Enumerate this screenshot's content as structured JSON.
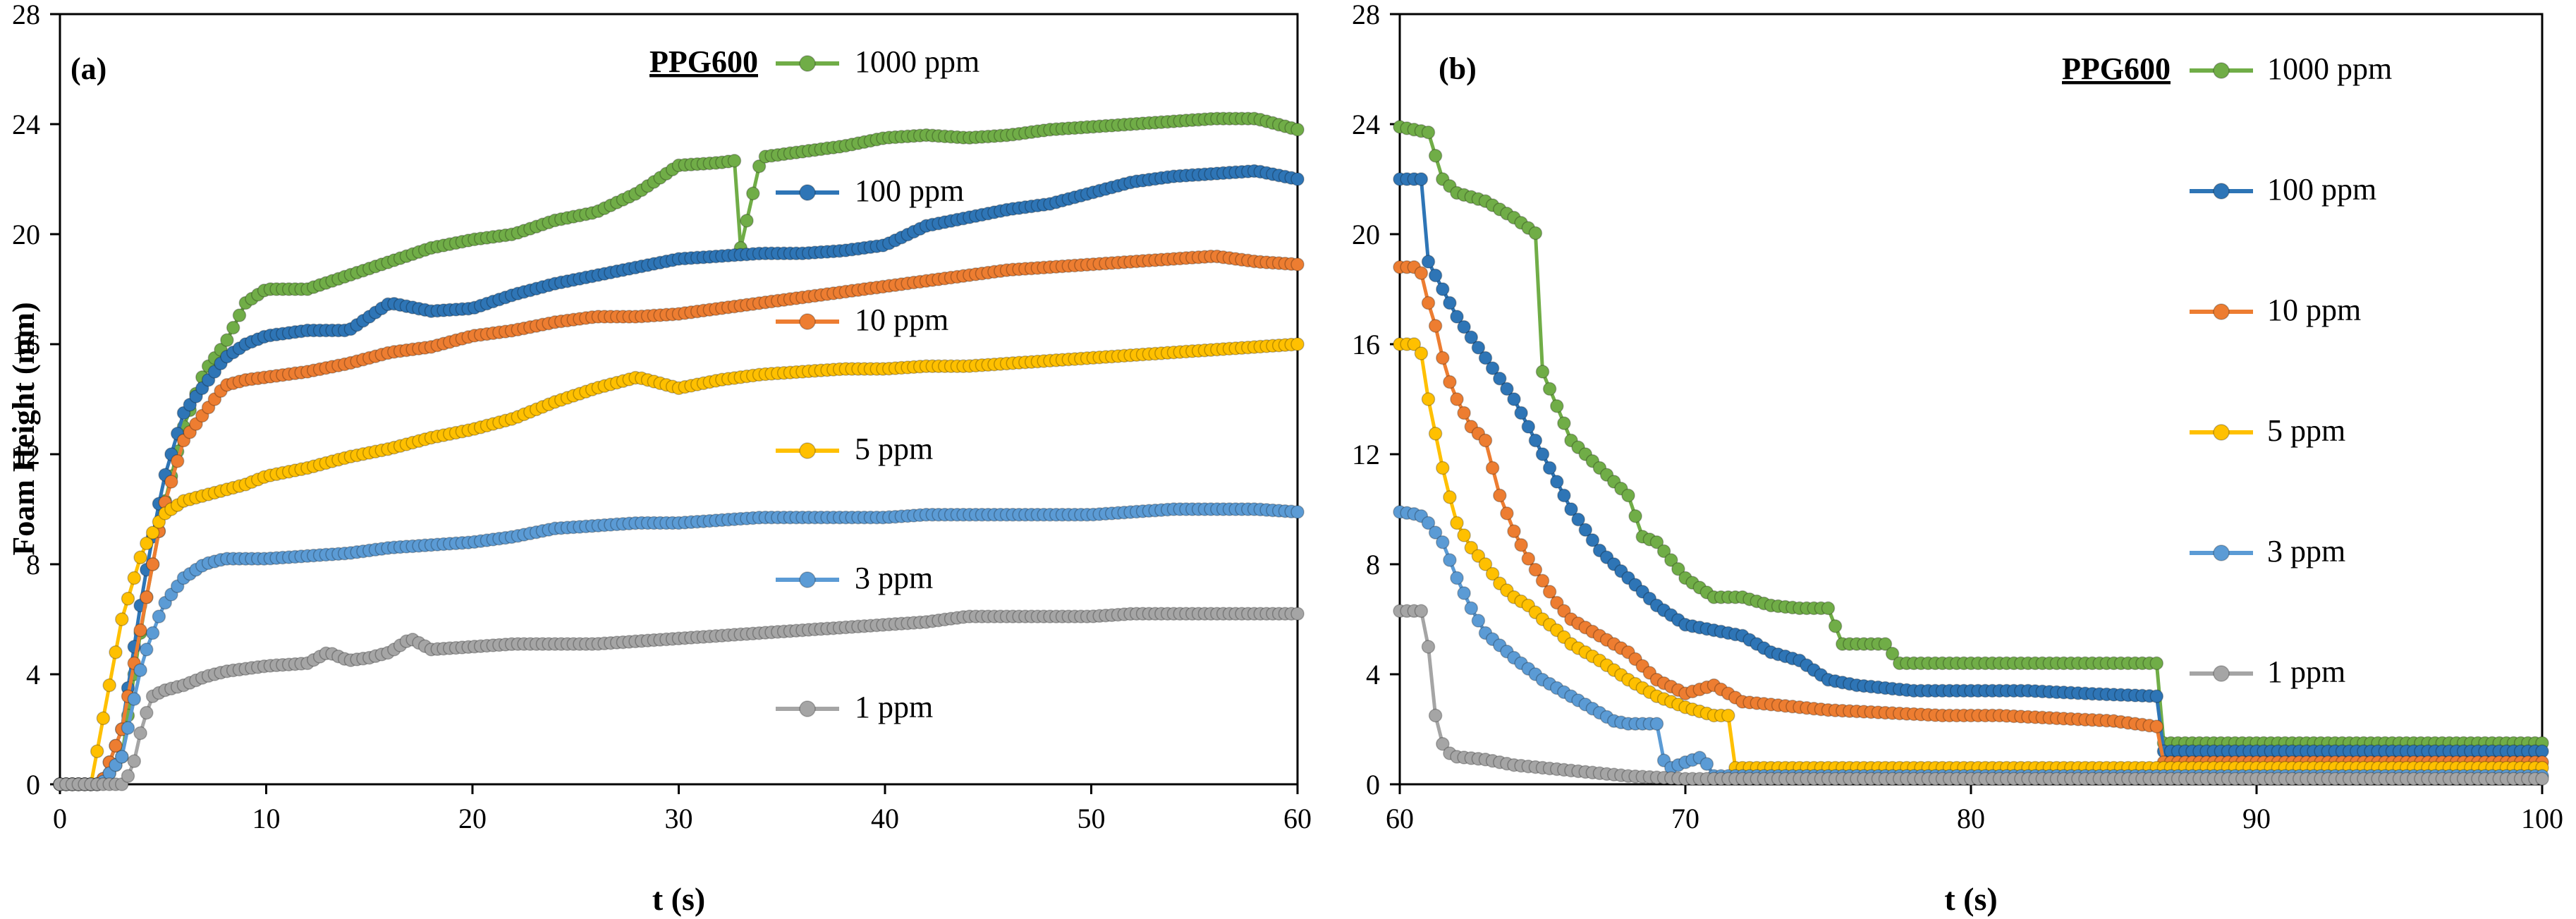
{
  "figure": {
    "ylabel": "Foam Height (mm)",
    "colors": {
      "1000 ppm": "#70AD47",
      "100 ppm": "#2E75B6",
      "10 ppm": "#ED7D31",
      "5 ppm": "#FFC000",
      "3 ppm": "#5B9BD5",
      "1 ppm": "#A5A5A5",
      "frame": "#000000"
    }
  },
  "chart_data": [
    {
      "type": "line",
      "panel_label": "(a)",
      "title": "PPG600",
      "xlabel": "t (s)",
      "ylabel": "Foam Height (mm)",
      "xlim": [
        0,
        60
      ],
      "ylim": [
        0,
        28
      ],
      "xticks": [
        "0",
        "10",
        "20",
        "30",
        "40",
        "50",
        "60"
      ],
      "yticks": [
        "0",
        "4",
        "8",
        "12",
        "16",
        "20",
        "24",
        "28"
      ],
      "grid": false,
      "legend_position": "inside, right side, stacked vertically",
      "series": [
        {
          "name": "1000 ppm",
          "x": [
            0,
            2,
            3,
            4,
            5,
            6,
            7,
            8,
            9,
            10,
            12,
            14,
            16,
            18,
            20,
            22,
            24,
            26,
            28,
            30,
            32,
            33,
            33,
            34,
            36,
            38,
            40,
            42,
            44,
            46,
            48,
            50,
            52,
            54,
            56,
            58,
            60
          ],
          "y": [
            0,
            0,
            1,
            6,
            10,
            13,
            15,
            16,
            17.5,
            18,
            18,
            18.5,
            19,
            19.5,
            19.8,
            20,
            20.5,
            20.8,
            21.5,
            22.5,
            22.6,
            22.7,
            19.5,
            22.8,
            23,
            23.2,
            23.5,
            23.6,
            23.5,
            23.6,
            23.8,
            23.9,
            24,
            24.1,
            24.2,
            24.2,
            23.8
          ]
        },
        {
          "name": "100 ppm",
          "x": [
            0,
            2,
            3,
            4,
            5,
            6,
            7,
            8,
            9,
            10,
            12,
            14,
            16,
            18,
            20,
            22,
            24,
            26,
            28,
            30,
            32,
            34,
            36,
            38,
            40,
            42,
            44,
            46,
            48,
            50,
            52,
            54,
            56,
            58,
            60
          ],
          "y": [
            0,
            0,
            2,
            7,
            11,
            13.5,
            14.5,
            15.5,
            16,
            16.3,
            16.5,
            16.5,
            17.5,
            17.2,
            17.3,
            17.8,
            18.2,
            18.5,
            18.8,
            19.1,
            19.2,
            19.3,
            19.3,
            19.4,
            19.6,
            20.3,
            20.6,
            20.9,
            21.1,
            21.5,
            21.9,
            22.1,
            22.2,
            22.3,
            22
          ]
        },
        {
          "name": "10 ppm",
          "x": [
            0,
            2,
            3,
            4,
            5,
            6,
            7,
            8,
            9,
            10,
            12,
            14,
            16,
            18,
            20,
            22,
            24,
            26,
            28,
            30,
            32,
            34,
            36,
            38,
            40,
            42,
            44,
            46,
            48,
            50,
            52,
            54,
            56,
            58,
            60
          ],
          "y": [
            0,
            0,
            2,
            6,
            10,
            12.5,
            13.5,
            14.5,
            14.7,
            14.8,
            15,
            15.3,
            15.7,
            15.9,
            16.3,
            16.5,
            16.8,
            17,
            17,
            17.1,
            17.3,
            17.5,
            17.7,
            17.9,
            18.1,
            18.3,
            18.5,
            18.7,
            18.8,
            18.9,
            19,
            19.1,
            19.2,
            19,
            18.9
          ]
        },
        {
          "name": "5 ppm",
          "x": [
            0,
            1.5,
            2,
            3,
            4,
            5,
            6,
            7,
            8,
            9,
            10,
            12,
            14,
            16,
            18,
            20,
            22,
            24,
            26,
            28,
            30,
            32,
            34,
            36,
            38,
            40,
            42,
            44,
            46,
            48,
            50,
            52,
            54,
            56,
            58,
            60
          ],
          "y": [
            0,
            0,
            2,
            6,
            8.5,
            9.8,
            10.3,
            10.5,
            10.7,
            10.9,
            11.2,
            11.5,
            11.9,
            12.2,
            12.6,
            12.9,
            13.3,
            13.9,
            14.4,
            14.8,
            14.4,
            14.7,
            14.9,
            15,
            15.1,
            15.1,
            15.2,
            15.2,
            15.3,
            15.4,
            15.5,
            15.6,
            15.7,
            15.8,
            15.9,
            16
          ]
        },
        {
          "name": "3 ppm",
          "x": [
            0,
            2,
            3,
            4,
            5,
            6,
            7,
            8,
            10,
            12,
            14,
            16,
            18,
            20,
            22,
            24,
            26,
            28,
            30,
            32,
            34,
            36,
            38,
            40,
            42,
            44,
            46,
            48,
            50,
            52,
            54,
            56,
            58,
            60
          ],
          "y": [
            0,
            0,
            1,
            4.5,
            6.5,
            7.5,
            8,
            8.2,
            8.2,
            8.3,
            8.4,
            8.6,
            8.7,
            8.8,
            9,
            9.3,
            9.4,
            9.5,
            9.5,
            9.6,
            9.7,
            9.7,
            9.7,
            9.7,
            9.8,
            9.8,
            9.8,
            9.8,
            9.8,
            9.9,
            10,
            10,
            10,
            9.9
          ]
        },
        {
          "name": "1 ppm",
          "x": [
            0,
            3,
            3.5,
            4,
            4.5,
            5,
            6,
            7,
            8,
            9,
            10,
            12,
            13,
            14,
            15,
            16,
            17,
            18,
            20,
            22,
            24,
            26,
            28,
            30,
            32,
            34,
            36,
            38,
            40,
            42,
            44,
            46,
            48,
            50,
            52,
            54,
            56,
            58,
            60
          ],
          "y": [
            0,
            0,
            0.5,
            2.2,
            3.2,
            3.4,
            3.6,
            3.9,
            4.1,
            4.2,
            4.3,
            4.4,
            4.8,
            4.5,
            4.6,
            4.8,
            5.3,
            4.9,
            5,
            5.1,
            5.1,
            5.1,
            5.2,
            5.3,
            5.4,
            5.5,
            5.6,
            5.7,
            5.8,
            5.9,
            6.1,
            6.1,
            6.1,
            6.1,
            6.2,
            6.2,
            6.2,
            6.2,
            6.2
          ]
        }
      ]
    },
    {
      "type": "line",
      "panel_label": "(b)",
      "title": "PPG600",
      "xlabel": "t (s)",
      "ylabel": "",
      "xlim": [
        60,
        100
      ],
      "ylim": [
        0,
        28
      ],
      "xticks": [
        "60",
        "70",
        "80",
        "90",
        "100"
      ],
      "yticks": [
        "0",
        "4",
        "8",
        "12",
        "16",
        "20",
        "24",
        "28"
      ],
      "grid": false,
      "legend_position": "right of plot area, stacked vertically",
      "series": [
        {
          "name": "1000 ppm",
          "x": [
            60,
            61,
            61.5,
            62,
            63,
            64,
            64.8,
            65,
            66,
            67,
            68,
            68.5,
            69,
            70,
            71,
            72,
            73,
            74,
            75,
            75.5,
            77,
            77.5,
            79,
            81,
            83,
            85,
            86.5,
            86.5,
            87,
            90,
            95,
            100
          ],
          "y": [
            23.9,
            23.7,
            22,
            21.5,
            21.2,
            20.6,
            20,
            15,
            12.5,
            11.5,
            10.5,
            9,
            8.8,
            7.5,
            6.8,
            6.8,
            6.5,
            6.4,
            6.4,
            5.1,
            5.1,
            4.4,
            4.4,
            4.4,
            4.4,
            4.4,
            4.4,
            1.5,
            1.5,
            1.5,
            1.5,
            1.5
          ]
        },
        {
          "name": "100 ppm",
          "x": [
            60,
            60.8,
            61,
            62,
            63,
            64,
            65,
            66,
            67,
            68,
            69,
            70,
            71,
            72,
            73,
            74,
            75,
            76,
            77,
            78,
            80,
            82,
            84,
            86.5,
            86.5,
            87,
            90,
            95,
            100
          ],
          "y": [
            22,
            22,
            19,
            17,
            15.5,
            14,
            12,
            10,
            8.5,
            7.5,
            6.5,
            5.8,
            5.6,
            5.4,
            4.8,
            4.5,
            3.8,
            3.6,
            3.5,
            3.4,
            3.4,
            3.4,
            3.3,
            3.2,
            1.2,
            1.2,
            1.2,
            1.2,
            1.2
          ]
        },
        {
          "name": "10 ppm",
          "x": [
            60,
            60.7,
            61,
            61.3,
            61.6,
            62,
            62.5,
            63,
            63.5,
            64,
            64.5,
            65,
            65.5,
            66,
            67,
            68,
            69,
            70,
            71,
            72,
            73,
            75,
            77,
            79,
            81,
            83,
            85,
            86.5,
            86.5,
            87,
            90,
            95,
            100
          ],
          "y": [
            18.8,
            18.8,
            17.5,
            16.5,
            15,
            14,
            13,
            12.5,
            10.5,
            9.2,
            8.2,
            7.4,
            6.6,
            6,
            5.4,
            4.8,
            3.8,
            3.3,
            3.6,
            3,
            2.9,
            2.7,
            2.6,
            2.5,
            2.5,
            2.4,
            2.3,
            2.1,
            0.8,
            0.8,
            0.8,
            0.8,
            0.8
          ]
        },
        {
          "name": "5 ppm",
          "x": [
            60,
            60.7,
            61,
            61.3,
            61.6,
            62,
            62.5,
            63,
            63.5,
            64,
            64.5,
            65,
            65.5,
            66,
            67,
            68,
            69,
            70,
            71,
            71.5,
            71.5,
            72,
            75,
            80,
            85,
            90,
            95,
            100
          ],
          "y": [
            16,
            16,
            14,
            12.5,
            11,
            9.5,
            8.6,
            8,
            7.3,
            6.8,
            6.5,
            6,
            5.6,
            5.1,
            4.5,
            3.8,
            3.2,
            2.8,
            2.5,
            2.5,
            0.6,
            0.6,
            0.6,
            0.6,
            0.6,
            0.6,
            0.6,
            0.6
          ]
        },
        {
          "name": "3 ppm",
          "x": [
            60,
            60.7,
            61,
            61.5,
            62,
            62.5,
            63,
            64,
            65,
            66,
            67,
            67.5,
            68,
            69,
            69.3,
            69.5,
            70,
            70.6,
            71,
            75,
            80,
            90,
            100
          ],
          "y": [
            9.9,
            9.8,
            9.5,
            8.8,
            7.5,
            6.4,
            5.5,
            4.6,
            3.8,
            3.2,
            2.6,
            2.3,
            2.2,
            2.2,
            0.6,
            0.6,
            0.8,
            1,
            0.3,
            0.3,
            0.3,
            0.3,
            0.3
          ]
        },
        {
          "name": "1 ppm",
          "x": [
            60,
            60.8,
            61,
            61.3,
            61.6,
            62,
            63,
            64,
            65,
            66,
            67,
            68,
            69,
            70,
            72,
            75,
            80,
            85,
            90,
            95,
            100
          ],
          "y": [
            6.3,
            6.3,
            5,
            2,
            1.2,
            1,
            0.9,
            0.7,
            0.6,
            0.5,
            0.4,
            0.3,
            0.25,
            0.2,
            0.2,
            0.2,
            0.2,
            0.2,
            0.2,
            0.2,
            0.2
          ]
        }
      ]
    }
  ]
}
